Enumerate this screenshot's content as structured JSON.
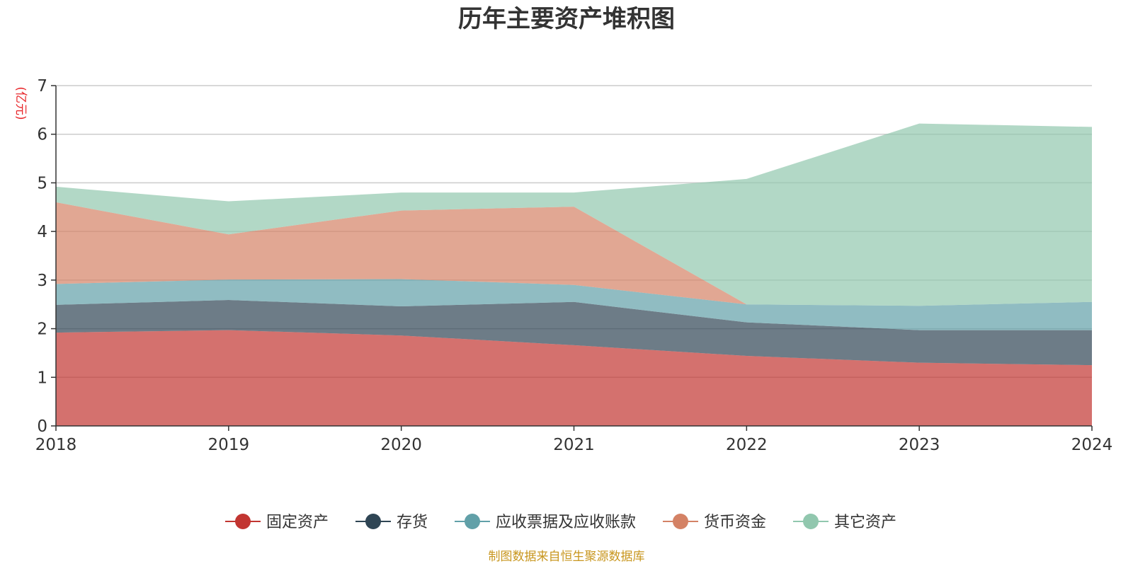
{
  "chart_data": {
    "type": "area",
    "stacked": true,
    "title": "历年主要资产堆积图",
    "unit_label": "(亿元)",
    "x": [
      "2018",
      "2019",
      "2020",
      "2021",
      "2022",
      "2023",
      "2024"
    ],
    "ylim": [
      0,
      7
    ],
    "yticks": [
      "0",
      "1",
      "2",
      "3",
      "4",
      "5",
      "6",
      "7"
    ],
    "grid": true,
    "legend_position": "bottom",
    "series": [
      {
        "name": "固定资产",
        "color": "#c23531",
        "values": [
          1.92,
          1.97,
          1.86,
          1.66,
          1.44,
          1.3,
          1.25
        ]
      },
      {
        "name": "存货",
        "color": "#2f4554",
        "values": [
          0.57,
          0.62,
          0.6,
          0.89,
          0.69,
          0.67,
          0.72
        ]
      },
      {
        "name": "应收票据及应收账款",
        "color": "#61a0a8",
        "values": [
          0.43,
          0.42,
          0.56,
          0.35,
          0.37,
          0.5,
          0.58
        ]
      },
      {
        "name": "货币资金",
        "color": "#d48265",
        "values": [
          1.68,
          0.93,
          1.41,
          1.61,
          0.0,
          0.0,
          0.0
        ]
      },
      {
        "name": "其它资产",
        "color": "#91c7ae",
        "values": [
          0.32,
          0.68,
          0.37,
          0.29,
          2.58,
          3.75,
          3.6
        ]
      }
    ]
  },
  "footer": {
    "source": "制图数据来自恒生聚源数据库"
  }
}
